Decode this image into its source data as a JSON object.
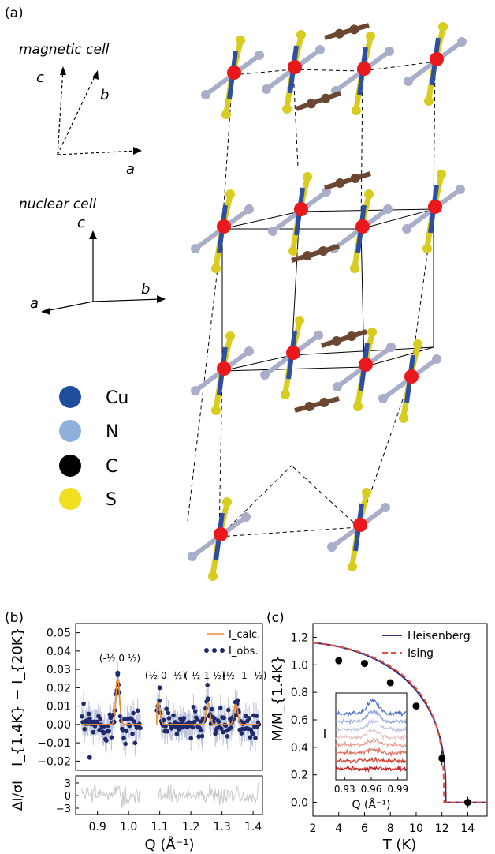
{
  "panel_a": {
    "label": "(a)",
    "magnetic_cell_label": "magnetic cell",
    "nuclear_cell_label": "nuclear cell",
    "magnetic_axes": {
      "a": "a",
      "b": "b",
      "c": "c"
    },
    "nuclear_axes": {
      "a": "a",
      "b": "b",
      "c": "c"
    },
    "legend": [
      {
        "name": "Cu",
        "color": "#1f4e9c"
      },
      {
        "name": "N",
        "color": "#8fb0dc"
      },
      {
        "name": "C",
        "color": "#000000"
      },
      {
        "name": "S",
        "color": "#f0e020"
      }
    ],
    "colors": {
      "cu_center": "#e8181c",
      "bond_blue": "#2e4fa0",
      "sulfur_rod": "#d8cc20",
      "nitrogen_ball": "#a8aec8",
      "carbon_ball": "#6b4630"
    }
  },
  "panel_b": {
    "label": "(b)",
    "ylabel": "I_{1.4K} − I_{20K}",
    "resid_ylabel": "ΔI/σI",
    "xlabel": "Q (Å⁻¹)",
    "legend": [
      {
        "name": "I_calc.",
        "color": "#f08c28"
      },
      {
        "name": "I_obs.",
        "color": "#1f2a6e"
      }
    ],
    "peak_labels": [
      "(-½ 0 ½)",
      "(½ 0 -½)",
      "(-½ 1 ½)",
      "(½ -1 -½)"
    ],
    "yticks": [
      "−0.02",
      "−0.01",
      "0.00",
      "0.01",
      "0.02",
      "0.03",
      "0.04",
      "0.05"
    ],
    "xticks": [
      "0.9",
      "1.0",
      "1.1",
      "1.2",
      "1.3",
      "1.4"
    ],
    "resid_yticks": [
      "3",
      "0",
      "−3"
    ]
  },
  "panel_c": {
    "label": "(c)",
    "ylabel": "M/M_{1.4K}",
    "xlabel": "T (K)",
    "xticks": [
      "2",
      "4",
      "6",
      "8",
      "10",
      "12",
      "14"
    ],
    "yticks": [
      "0.0",
      "0.2",
      "0.4",
      "0.6",
      "0.8",
      "1.0",
      "1.2"
    ],
    "legend": [
      {
        "name": "Heisenberg",
        "color": "#3a2a7a"
      },
      {
        "name": "Ising",
        "color": "#e8503c"
      }
    ],
    "inset": {
      "ylabel": "I",
      "xlabel": "Q (Å⁻¹)",
      "xticks": [
        "0.93",
        "0.96",
        "0.99"
      ]
    }
  },
  "chart_data": [
    {
      "type": "scatter",
      "title": "",
      "xlabel": "Q (Å⁻¹)",
      "ylabel": "I1.4K − I20K",
      "xlim": [
        0.83,
        1.43
      ],
      "ylim": [
        -0.025,
        0.055
      ],
      "grid": false,
      "legend_position": "top-right",
      "series": [
        {
          "name": "Icalc.",
          "kind": "line",
          "baseline": 0.0,
          "peaks": [
            {
              "x": 0.965,
              "height": 0.025
            },
            {
              "x": 1.095,
              "height": 0.012
            },
            {
              "x": 1.255,
              "height": 0.012
            },
            {
              "x": 1.345,
              "height": 0.011
            }
          ],
          "gap": [
            1.04,
            1.09
          ]
        },
        {
          "name": "Iobs.",
          "kind": "points",
          "noise_sd": 0.004,
          "highlighted_points": [
            {
              "x": 0.965,
              "y": 0.028
            },
            {
              "x": 1.1,
              "y": 0.02
            },
            {
              "x": 1.255,
              "y": 0.014
            },
            {
              "x": 1.35,
              "y": 0.013
            },
            {
              "x": 0.875,
              "y": -0.018
            }
          ]
        }
      ]
    },
    {
      "type": "scatter",
      "title": "",
      "xlabel": "T (K)",
      "ylabel": "M/M1.4K",
      "xlim": [
        2,
        15.5
      ],
      "ylim": [
        -0.1,
        1.3
      ],
      "grid": false,
      "legend_position": "top-right",
      "points": [
        {
          "x": 4,
          "y": 1.03,
          "err": 0.02
        },
        {
          "x": 6,
          "y": 1.01,
          "err": 0.02
        },
        {
          "x": 8,
          "y": 0.87,
          "err": 0.02
        },
        {
          "x": 10,
          "y": 0.7,
          "err": 0.02
        },
        {
          "x": 12,
          "y": 0.32,
          "err": 0.05
        },
        {
          "x": 14,
          "y": 0.0,
          "err": 0.04
        }
      ],
      "series": [
        {
          "name": "Heisenberg",
          "kind": "line",
          "Tc": 12.3,
          "beta": 0.36
        },
        {
          "name": "Ising",
          "kind": "dashed",
          "Tc": 12.15,
          "beta": 0.326
        }
      ],
      "inset": {
        "type": "line",
        "xlabel": "Q (Å⁻¹)",
        "ylabel": "I",
        "xlim": [
          0.92,
          1.0
        ],
        "peak_center": 0.962,
        "curve_count": 8,
        "colors": [
          "#4a6cc0",
          "#8ea4dc",
          "#b8c4e4",
          "#e4c4c0",
          "#e8a090",
          "#e07060",
          "#d04030",
          "#c02020"
        ]
      }
    }
  ]
}
